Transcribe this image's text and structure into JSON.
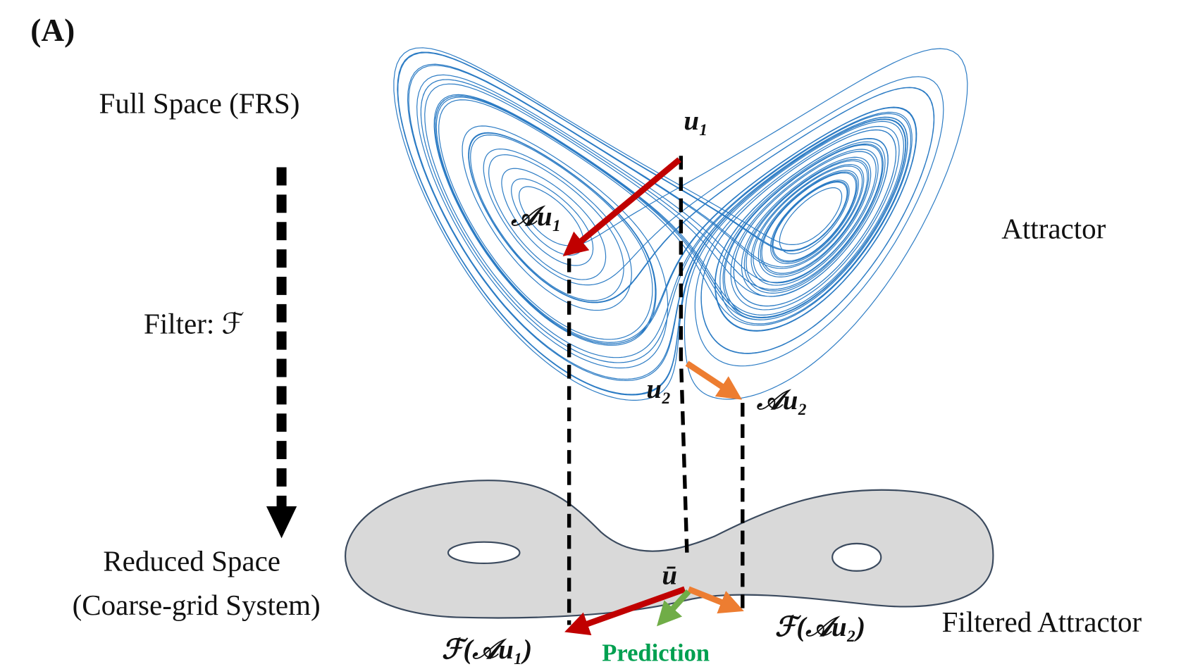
{
  "panel_label": "(A)",
  "full_space": "Full Space (FRS)",
  "filter": "Filter: ℱ",
  "reduced_space": [
    "Reduced Space",
    "(Coarse-grid System)"
  ],
  "attractor": "Attractor",
  "filtered_attractor": "Filtered Attractor",
  "points": {
    "u1": "u₁",
    "Au1": "𝒜u₁",
    "u2": "u₂",
    "Au2": "𝒜u₂",
    "ubar": "ū",
    "FAu1": "ℱ(𝒜u₁)",
    "FAu2": "ℱ(𝒜u₂)"
  },
  "prediction": "Prediction"
}
